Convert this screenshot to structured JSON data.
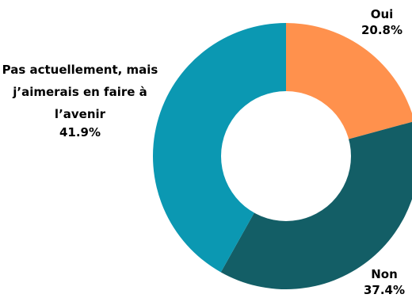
{
  "chart_data": {
    "type": "pie",
    "donut": true,
    "title": "",
    "slices": [
      {
        "label": "Oui",
        "value": 20.8,
        "value_label": "20.8%",
        "color": "#ff914d"
      },
      {
        "label": "Non",
        "value": 37.4,
        "value_label": "37.4%",
        "color": "#135e66"
      },
      {
        "label": "Pas actuellement, mais j’aimerais en faire à l’avenir",
        "value": 41.9,
        "value_label": "41.9%",
        "color": "#0b98b2"
      }
    ],
    "start_angle": "12 o'clock",
    "direction": "clockwise"
  }
}
